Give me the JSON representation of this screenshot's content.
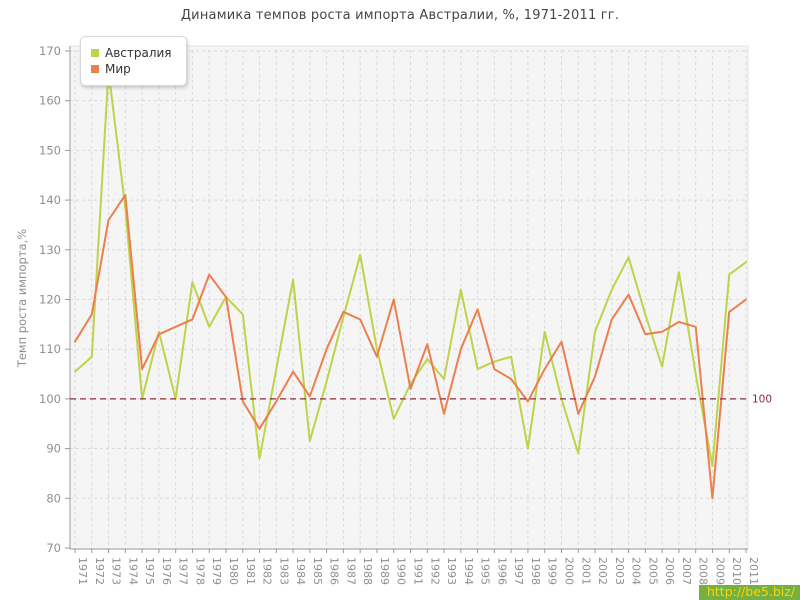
{
  "title": "Динамика темпов роста импорта Австралии, %, 1971-2011 гг.",
  "colors": {
    "australia": "#bdd44a",
    "world": "#ec7f4e",
    "plot_background": "#f5f5f5",
    "gridline": "#d9d9d9",
    "axis_spine": "#999999",
    "tick_label": "#8f8f8f",
    "reference_line": "#8b2e3f",
    "title_text": "#454545"
  },
  "legend": {
    "items": [
      {
        "label": "Австралия",
        "color": "#bdd44a"
      },
      {
        "label": "Мир",
        "color": "#ec7f4e"
      }
    ]
  },
  "y_axis": {
    "title": "Темп роста импорта,%",
    "ticks": [
      70,
      80,
      90,
      100,
      110,
      120,
      130,
      140,
      150,
      160,
      170
    ]
  },
  "reference_line": {
    "value": 100,
    "label": "100"
  },
  "watermark": {
    "text": "http://be5.biz/",
    "background": "#76b041",
    "foreground": "#ffd400"
  },
  "chart_data": {
    "type": "line",
    "title": "Динамика темпов роста импорта Австралии, %, 1971-2011 гг.",
    "xlabel": "",
    "ylabel": "Темп роста импорта,%",
    "ylim": [
      70,
      170
    ],
    "grid": true,
    "legend_position": "top-left",
    "categories": [
      1971,
      1972,
      1973,
      1974,
      1975,
      1976,
      1977,
      1978,
      1979,
      1980,
      1981,
      1982,
      1983,
      1984,
      1985,
      1986,
      1987,
      1988,
      1989,
      1990,
      1991,
      1992,
      1993,
      1994,
      1995,
      1996,
      1997,
      1998,
      1999,
      2000,
      2001,
      2002,
      2003,
      2004,
      2005,
      2006,
      2007,
      2008,
      2009,
      2010,
      2011
    ],
    "series": [
      {
        "name": "Австралия",
        "color": "#bdd44a",
        "values": [
          105.5,
          108.5,
          166,
          138.5,
          100,
          113.5,
          100,
          123.5,
          114.5,
          120.5,
          117,
          88,
          106,
          124,
          91.5,
          103.5,
          116.5,
          129,
          110,
          96,
          103,
          108,
          104,
          122,
          106,
          107.5,
          108.5,
          90,
          113.5,
          100,
          89,
          113.5,
          122,
          128.5,
          117,
          106.5,
          125.5,
          105,
          86.5,
          125,
          127.5
        ]
      },
      {
        "name": "Мир",
        "color": "#ec7f4e",
        "values": [
          111.5,
          117,
          136,
          141,
          106,
          113,
          114.5,
          116,
          125,
          120.5,
          99.5,
          94,
          99.5,
          105.5,
          100.5,
          110,
          117.5,
          116,
          108.5,
          120,
          102,
          111,
          97,
          110,
          118,
          106,
          104,
          99.5,
          106,
          111.5,
          97,
          104.5,
          116,
          121,
          113,
          113.5,
          115.5,
          114.5,
          80,
          117.5,
          120
        ]
      }
    ],
    "annotations": [
      {
        "type": "horizontal-dashed-line",
        "y": 100,
        "label": "100",
        "color": "#8b2e3f"
      }
    ]
  }
}
